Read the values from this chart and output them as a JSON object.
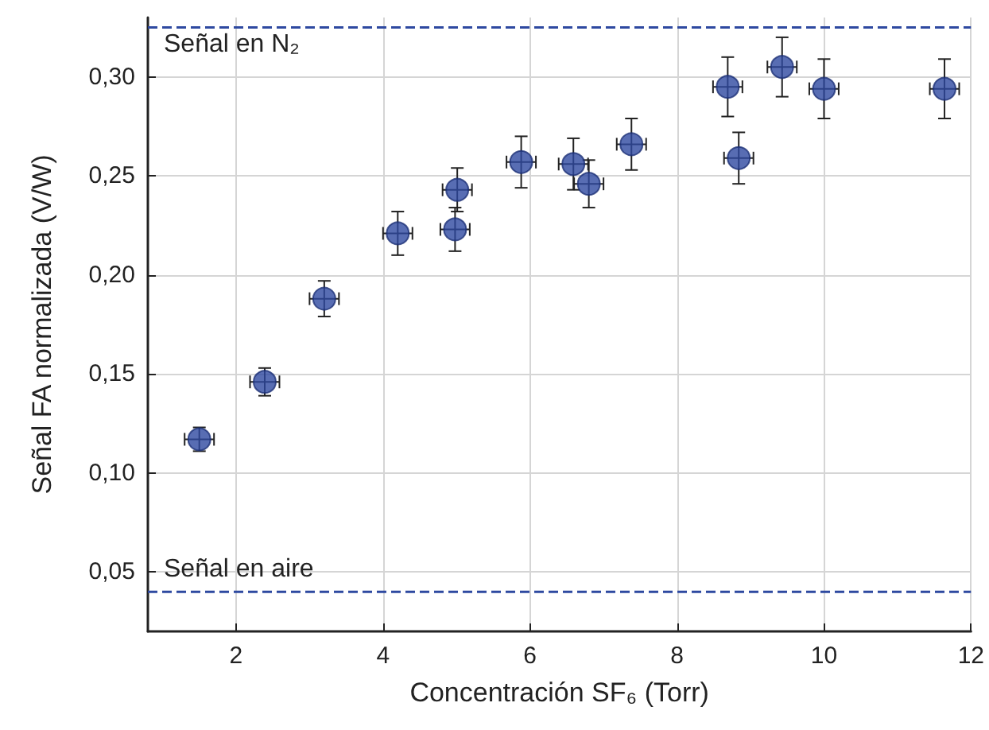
{
  "chart_data": {
    "type": "scatter",
    "xlabel": "Concentración SF₆ (Torr)",
    "ylabel": "Señal FA normalizada (V/W)",
    "x": [
      1.5,
      2.39,
      3.2,
      4.2,
      4.98,
      5.01,
      5.88,
      6.59,
      6.8,
      7.38,
      8.69,
      8.84,
      9.43,
      10.0,
      11.64
    ],
    "series": [
      {
        "color": "#2e49a0",
        "values": [
          0.117,
          0.146,
          0.188,
          0.221,
          0.223,
          0.243,
          0.257,
          0.256,
          0.246,
          0.266,
          0.295,
          0.259,
          0.305,
          0.294,
          0.294
        ],
        "errors": [
          0.006,
          0.007,
          0.009,
          0.011,
          0.011,
          0.011,
          0.013,
          0.013,
          0.012,
          0.013,
          0.015,
          0.013,
          0.015,
          0.015,
          0.015
        ],
        "xerrors": [
          0.2,
          0.2,
          0.2,
          0.2,
          0.2,
          0.2,
          0.2,
          0.2,
          0.2,
          0.2,
          0.2,
          0.2,
          0.2,
          0.2,
          0.2
        ]
      }
    ],
    "xlim": [
      0.8,
      12
    ],
    "xticks": [
      2,
      4,
      6,
      8,
      10,
      12
    ],
    "ylim": [
      0.02,
      0.33
    ],
    "yticks": [
      {
        "value": 0.05,
        "label": "0,05"
      },
      {
        "value": 0.1,
        "label": "0,10"
      },
      {
        "value": 0.15,
        "label": "0,15"
      },
      {
        "value": 0.2,
        "label": "0,20"
      },
      {
        "value": 0.25,
        "label": "0,25"
      },
      {
        "value": 0.3,
        "label": "0,30"
      }
    ],
    "ref_lines": [
      {
        "axis": "y",
        "value": 0.325,
        "label": "Señal en N₂",
        "color": "#2e49a0",
        "line_style": "dashed"
      },
      {
        "axis": "y",
        "value": 0.04,
        "label": "Señal en aire",
        "color": "#2e49a0",
        "line_style": "dashed"
      }
    ],
    "grid": true,
    "marker": "circle"
  }
}
